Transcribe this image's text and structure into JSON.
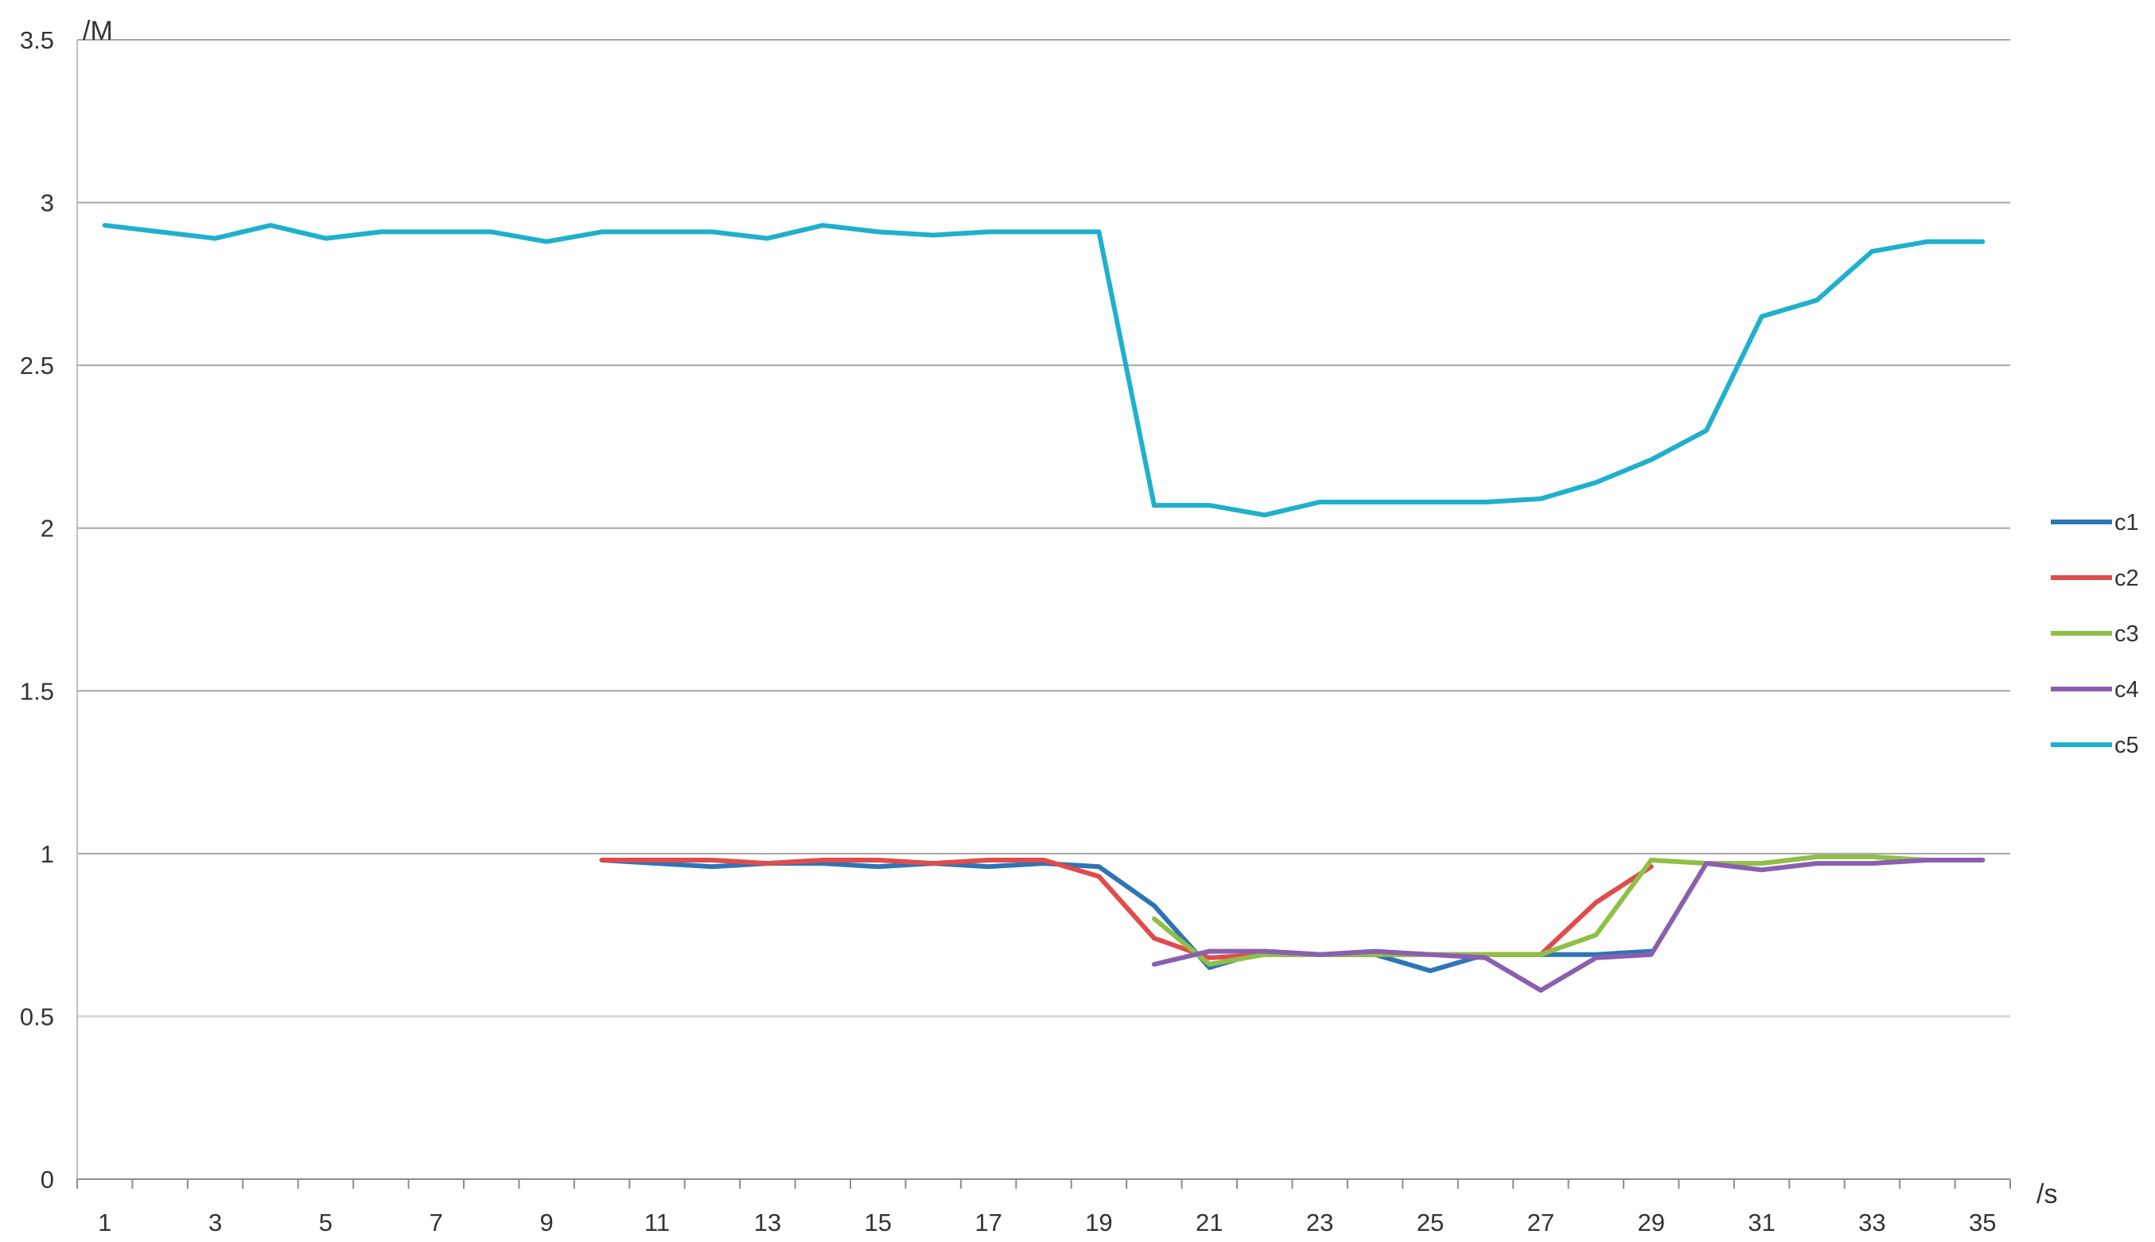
{
  "chart_data": {
    "type": "line",
    "title": "",
    "xlabel": "/s",
    "ylabel": "/M",
    "xlim": [
      1,
      35
    ],
    "ylim": [
      0,
      3.5
    ],
    "yticks": [
      "0",
      "0.5",
      "1",
      "1.5",
      "2",
      "2.5",
      "3",
      "3.5"
    ],
    "xtick_labels": [
      "1",
      "3",
      "5",
      "7",
      "9",
      "11",
      "13",
      "15",
      "17",
      "19",
      "21",
      "23",
      "25",
      "27",
      "29",
      "31",
      "33",
      "35"
    ],
    "grid": true,
    "legend_position": "right",
    "x": [
      1,
      2,
      3,
      4,
      5,
      6,
      7,
      8,
      9,
      10,
      11,
      12,
      13,
      14,
      15,
      16,
      17,
      18,
      19,
      20,
      21,
      22,
      23,
      24,
      25,
      26,
      27,
      28,
      29,
      30,
      31,
      32,
      33,
      34,
      35
    ],
    "series": [
      {
        "name": "c1",
        "color": "#2e75b6",
        "values": [
          null,
          null,
          null,
          null,
          null,
          null,
          null,
          null,
          null,
          0.98,
          0.97,
          0.96,
          0.97,
          0.97,
          0.96,
          0.97,
          0.96,
          0.97,
          0.96,
          0.84,
          0.65,
          0.7,
          0.69,
          0.69,
          0.64,
          0.69,
          0.69,
          0.69,
          0.7,
          null,
          null,
          null,
          null,
          null,
          null
        ]
      },
      {
        "name": "c2",
        "color": "#e04b4b",
        "values": [
          null,
          null,
          null,
          null,
          null,
          null,
          null,
          null,
          null,
          0.98,
          0.98,
          0.98,
          0.97,
          0.98,
          0.98,
          0.97,
          0.98,
          0.98,
          0.93,
          0.74,
          0.68,
          0.69,
          0.69,
          0.69,
          0.69,
          0.69,
          0.69,
          0.85,
          0.96,
          null,
          null,
          null,
          null,
          null,
          null
        ]
      },
      {
        "name": "c3",
        "color": "#8fbf45",
        "values": [
          null,
          null,
          null,
          null,
          null,
          null,
          null,
          null,
          null,
          null,
          null,
          null,
          null,
          null,
          null,
          null,
          null,
          null,
          null,
          0.8,
          0.66,
          0.69,
          0.69,
          0.69,
          0.69,
          0.69,
          0.69,
          0.75,
          0.98,
          0.97,
          0.97,
          0.99,
          0.99,
          0.98,
          0.98
        ]
      },
      {
        "name": "c4",
        "color": "#8a5fb0",
        "values": [
          null,
          null,
          null,
          null,
          null,
          null,
          null,
          null,
          null,
          null,
          null,
          null,
          null,
          null,
          null,
          null,
          null,
          null,
          null,
          0.66,
          0.7,
          0.7,
          0.69,
          0.7,
          0.69,
          0.68,
          0.58,
          0.68,
          0.69,
          0.97,
          0.95,
          0.97,
          0.97,
          0.98,
          0.98
        ]
      },
      {
        "name": "c5",
        "color": "#1fb0cc",
        "values": [
          2.93,
          2.91,
          2.89,
          2.93,
          2.89,
          2.91,
          2.91,
          2.91,
          2.88,
          2.91,
          2.91,
          2.91,
          2.89,
          2.93,
          2.91,
          2.9,
          2.91,
          2.91,
          2.91,
          2.07,
          2.07,
          2.04,
          2.08,
          2.08,
          2.08,
          2.08,
          2.09,
          2.14,
          2.21,
          2.3,
          2.65,
          2.7,
          2.85,
          2.88,
          2.88
        ]
      }
    ]
  }
}
